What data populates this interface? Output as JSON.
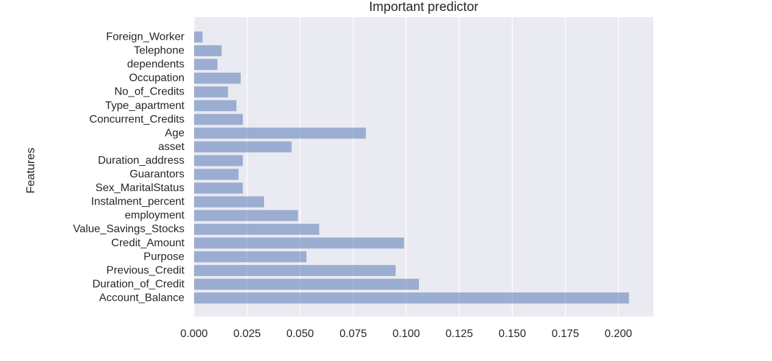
{
  "chart_data": {
    "type": "bar",
    "orientation": "horizontal",
    "title": "Important predictor",
    "xlabel": "",
    "ylabel": "Features",
    "xlim": [
      0.0,
      0.2165
    ],
    "xticks": [
      0.0,
      0.025,
      0.05,
      0.075,
      0.1,
      0.125,
      0.15,
      0.175,
      0.2
    ],
    "xtick_labels": [
      "0.000",
      "0.025",
      "0.050",
      "0.075",
      "0.100",
      "0.125",
      "0.150",
      "0.175",
      "0.200"
    ],
    "grid": true,
    "categories": [
      "Account_Balance",
      "Duration_of_Credit",
      "Previous_Credit",
      "Purpose",
      "Credit_Amount",
      "Value_Savings_Stocks",
      "employment",
      "Instalment_percent",
      "Sex_MaritalStatus",
      "Guarantors",
      "Duration_address",
      "asset",
      "Age",
      "Concurrent_Credits",
      "Type_apartment",
      "No_of_Credits",
      "Occupation",
      "dependents",
      "Telephone",
      "Foreign_Worker"
    ],
    "values": [
      0.205,
      0.106,
      0.095,
      0.053,
      0.099,
      0.059,
      0.049,
      0.033,
      0.023,
      0.021,
      0.023,
      0.046,
      0.081,
      0.023,
      0.02,
      0.016,
      0.022,
      0.011,
      0.013,
      0.004
    ],
    "colors": {
      "bar": "#4c72b0",
      "bar_opacity": 0.5,
      "plot_background": "#eaeaf2",
      "grid": "#ffffff",
      "text": "#262626"
    }
  }
}
